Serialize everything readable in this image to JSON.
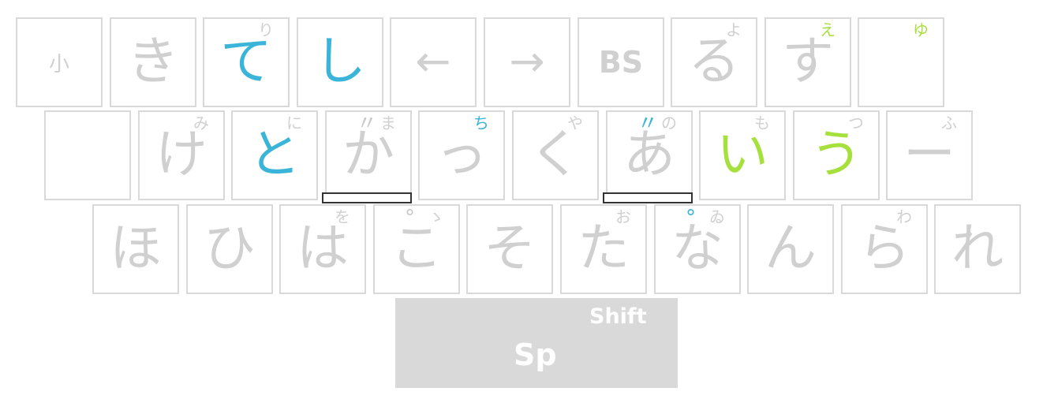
{
  "colors": {
    "blue": "#3ab4d8",
    "green": "#a6e03c",
    "gray": "#d0d0d0"
  },
  "rows": [
    [
      {
        "main": "小",
        "sub": "",
        "style": "small"
      },
      {
        "main": "き",
        "sub": ""
      },
      {
        "main": "て",
        "sub": "り",
        "color": "blue"
      },
      {
        "main": "し",
        "sub": "",
        "color": "blue"
      },
      {
        "main": "←",
        "sub": "",
        "style": "arrow",
        "icon": "left-arrow-icon"
      },
      {
        "main": "→",
        "sub": "",
        "style": "arrow",
        "icon": "right-arrow-icon"
      },
      {
        "main": "BS",
        "sub": "",
        "style": "bs"
      },
      {
        "main": "る",
        "sub": "よ"
      },
      {
        "main": "す",
        "sub": "え",
        "subColor": "green"
      },
      {
        "main": "",
        "sub": "ゆ",
        "subColor": "green"
      }
    ],
    [
      {
        "main": "",
        "sub": ""
      },
      {
        "main": "け",
        "sub": "み"
      },
      {
        "main": "と",
        "sub": "に",
        "color": "blue"
      },
      {
        "main": "か",
        "sub": "ま",
        "mark": "〃",
        "underline": true
      },
      {
        "main": "っ",
        "sub": "ち",
        "subColor": "blue"
      },
      {
        "main": "く",
        "sub": "や"
      },
      {
        "main": "あ",
        "sub": "の",
        "mark": "〃",
        "markColor": "blue",
        "underline": true
      },
      {
        "main": "い",
        "sub": "も",
        "color": "green"
      },
      {
        "main": "う",
        "sub": "つ",
        "color": "green"
      },
      {
        "main": "ー",
        "sub": "ふ"
      }
    ],
    [
      {
        "main": "ほ",
        "sub": ""
      },
      {
        "main": "ひ",
        "sub": ""
      },
      {
        "main": "は",
        "sub": "を"
      },
      {
        "main": "こ",
        "sub": "ゝ",
        "mark": "°"
      },
      {
        "main": "そ",
        "sub": ""
      },
      {
        "main": "た",
        "sub": "お"
      },
      {
        "main": "な",
        "sub": "ゐ",
        "mark": "°",
        "markColor": "blue"
      },
      {
        "main": "ん",
        "sub": ""
      },
      {
        "main": "ら",
        "sub": "わ"
      },
      {
        "main": "れ",
        "sub": ""
      }
    ]
  ],
  "space": {
    "label": "Sp",
    "shift_label": "Shift"
  }
}
